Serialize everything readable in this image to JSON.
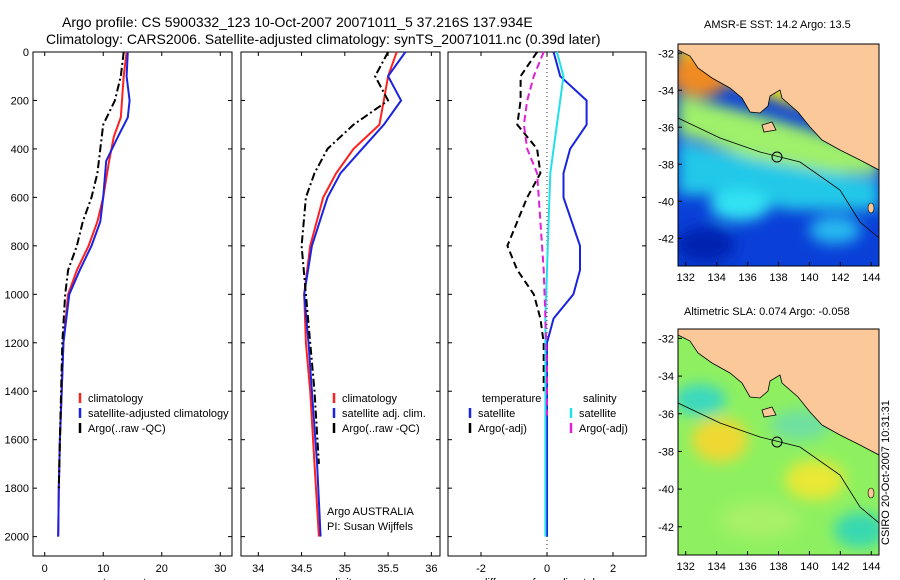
{
  "figure": {
    "title_line1": "Argo profile: CS 5900332_123 10-Oct-2007 20071011_5 37.216S 137.934E",
    "title_line2": "Climatology: CARS2006. Satellite-adjusted climatology: synTS_20071011.nc (0.39d later)",
    "credit": "CSIRO 20-Oct-2007 10:31:31",
    "colors": {
      "climatology": "#ff2020",
      "satellite": "#1a24e0",
      "argo": "#000000",
      "sat_diff": "#20e0ea",
      "argo_diff": "#e020d8",
      "land": "#fbc89a"
    }
  },
  "chart_data": [
    {
      "type": "line",
      "name": "temperature",
      "xlabel": "temperature",
      "ylabel": "",
      "xlim": [
        -2,
        32
      ],
      "ylim": [
        0,
        2080
      ],
      "y_inverted": true,
      "xticks": [
        0,
        10,
        20,
        30
      ],
      "yticks": [
        0,
        200,
        400,
        600,
        800,
        1000,
        1200,
        1400,
        1600,
        1800,
        2000
      ],
      "legend": [
        "climatology",
        "satellite-adjusted climatology",
        "Argo(..raw -QC)"
      ],
      "series": [
        {
          "name": "climatology",
          "style": "solid",
          "x": [
            14,
            13.5,
            13.2,
            13,
            11.8,
            11,
            10,
            9,
            7.5,
            5.5,
            4,
            3.2,
            2.9,
            2.6,
            2.4,
            2.3
          ],
          "y": [
            0,
            100,
            200,
            270,
            350,
            450,
            600,
            700,
            800,
            900,
            1000,
            1200,
            1400,
            1600,
            1800,
            2000
          ]
        },
        {
          "name": "satellite-adjusted climatology",
          "style": "solid",
          "x": [
            14.2,
            14,
            14.5,
            14.2,
            12.5,
            10.5,
            10,
            9.5,
            8,
            6,
            4.2,
            3.2,
            2.9,
            2.6,
            2.4,
            2.3
          ],
          "y": [
            0,
            100,
            200,
            270,
            350,
            450,
            600,
            700,
            800,
            900,
            1000,
            1200,
            1400,
            1600,
            1800,
            2000
          ]
        },
        {
          "name": "Argo(..raw -QC)",
          "style": "dashdot",
          "x": [
            13.5,
            13,
            12,
            10,
            9.5,
            9,
            8,
            6.5,
            5.5,
            4,
            3.5,
            3,
            2.8,
            2.6,
            2.4
          ],
          "y": [
            0,
            100,
            200,
            300,
            400,
            500,
            600,
            700,
            800,
            900,
            1000,
            1200,
            1400,
            1600,
            1800
          ]
        }
      ]
    },
    {
      "type": "line",
      "name": "salinity",
      "xlabel": "salinity",
      "xlim": [
        33.8,
        36.1
      ],
      "ylim": [
        0,
        2080
      ],
      "y_inverted": true,
      "xticks": [
        34,
        34.5,
        35,
        35.5,
        36
      ],
      "legend": [
        "climatology",
        "satellite adj. clim.",
        "Argo(..raw -QC)"
      ],
      "annotation": [
        "Argo AUSTRALIA",
        "PI: Susan Wijffels"
      ],
      "series": [
        {
          "name": "climatology",
          "style": "solid",
          "x": [
            35.6,
            35.5,
            35.45,
            35.4,
            35.1,
            34.9,
            34.75,
            34.6,
            34.53,
            34.55,
            34.6,
            34.65,
            34.7
          ],
          "y": [
            0,
            100,
            200,
            300,
            400,
            500,
            600,
            800,
            1000,
            1200,
            1400,
            1700,
            2000
          ]
        },
        {
          "name": "satellite adj. clim.",
          "style": "solid",
          "x": [
            35.7,
            35.5,
            35.65,
            35.45,
            35.2,
            34.95,
            34.8,
            34.62,
            34.53,
            34.58,
            34.62,
            34.68,
            34.72
          ],
          "y": [
            0,
            100,
            200,
            300,
            400,
            500,
            600,
            800,
            1000,
            1200,
            1400,
            1700,
            2000
          ]
        },
        {
          "name": "Argo(..raw -QC)",
          "style": "dashdot",
          "x": [
            35.5,
            35.35,
            35.5,
            35.1,
            34.8,
            34.65,
            34.55,
            34.5,
            34.55,
            34.6,
            34.65,
            34.7
          ],
          "y": [
            0,
            100,
            200,
            300,
            400,
            500,
            600,
            800,
            1000,
            1200,
            1400,
            1700
          ]
        }
      ]
    },
    {
      "type": "line",
      "name": "difference",
      "xlabel": "difference from climatology",
      "xlim": [
        -3,
        3
      ],
      "ylim": [
        0,
        2080
      ],
      "y_inverted": true,
      "xticks": [
        -2,
        0,
        2
      ],
      "legend": [
        "temperature",
        "satellite",
        "Argo(-adj)",
        "salinity",
        "satellite",
        "Argo(-adj)"
      ],
      "series": [
        {
          "name": "temperature satellite",
          "style": "solid",
          "x": [
            0.2,
            0.4,
            1.2,
            1.2,
            0.7,
            0.5,
            0.5,
            1.0,
            1.0,
            0.8,
            0.2,
            0.0,
            0.0,
            0.0,
            0.0
          ],
          "y": [
            0,
            100,
            200,
            300,
            400,
            500,
            600,
            800,
            900,
            1000,
            1100,
            1200,
            1400,
            1700,
            2000
          ]
        },
        {
          "name": "temperature Argo(-adj)",
          "style": "dashed",
          "x": [
            -0.3,
            -0.8,
            -0.8,
            -0.9,
            -0.3,
            -0.2,
            -0.6,
            -1.2,
            -0.9,
            -0.4,
            -0.2,
            -0.1,
            -0.1
          ],
          "y": [
            0,
            100,
            200,
            300,
            400,
            500,
            600,
            800,
            900,
            1000,
            1100,
            1200,
            1400
          ]
        },
        {
          "name": "salinity satellite",
          "style": "solid",
          "x": [
            0.3,
            0.5,
            0.4,
            0.3,
            0.2,
            0.1,
            0.05,
            0.0,
            -0.05,
            -0.05,
            -0.05,
            -0.05
          ],
          "y": [
            0,
            100,
            200,
            300,
            400,
            500,
            700,
            900,
            1100,
            1400,
            1700,
            2000
          ]
        },
        {
          "name": "salinity Argo(-adj)",
          "style": "dashed",
          "x": [
            -0.1,
            -0.4,
            -0.6,
            -0.7,
            -0.6,
            -0.3,
            -0.2,
            -0.1,
            -0.05,
            0.0,
            0.0
          ],
          "y": [
            0,
            100,
            200,
            300,
            400,
            500,
            700,
            900,
            1100,
            1300,
            1500
          ]
        }
      ]
    },
    {
      "type": "heatmap",
      "name": "sst-map",
      "title": "AMSR-E SST: 14.2 Argo: 13.5",
      "xlim": [
        131.5,
        144.5
      ],
      "ylim": [
        -43.5,
        -31.5
      ],
      "xticks": [
        132,
        134,
        136,
        138,
        140,
        142,
        144
      ],
      "yticks": [
        -32,
        -34,
        -36,
        -38,
        -40,
        -42
      ],
      "marker": {
        "lon": 137.934,
        "lat": -37.216
      }
    },
    {
      "type": "heatmap",
      "name": "sla-map",
      "title": "Altimetric SLA: 0.074 Argo: -0.058",
      "xlim": [
        131.5,
        144.5
      ],
      "ylim": [
        -43.5,
        -31.5
      ],
      "xticks": [
        132,
        134,
        136,
        138,
        140,
        142,
        144
      ],
      "yticks": [
        -32,
        -34,
        -36,
        -38,
        -40,
        -42
      ],
      "marker": {
        "lon": 137.934,
        "lat": -37.216
      }
    }
  ]
}
